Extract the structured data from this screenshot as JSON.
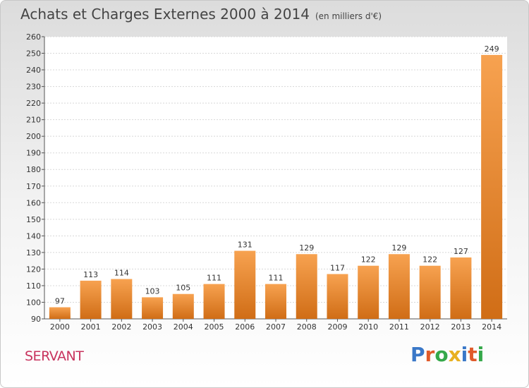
{
  "header": {
    "title": "Achats et Charges Externes 2000 à 2014",
    "subtitle": "(en milliers d'€)"
  },
  "footer": {
    "commune": "SERVANT",
    "logo_text": "Proxiti"
  },
  "colors": {
    "bar_light": "#f7a250",
    "bar_dark": "#d06d16",
    "commune": "#c8335e",
    "logo": [
      "#3a78c8",
      "#e05a2a",
      "#35a84a",
      "#e8b020",
      "#3a78c8",
      "#e05a2a",
      "#35a84a"
    ]
  },
  "chart_data": {
    "type": "bar",
    "title": "Achats et Charges Externes 2000 à 2014",
    "subtitle": "(en milliers d'€)",
    "categories": [
      "2000",
      "2001",
      "2002",
      "2003",
      "2004",
      "2005",
      "2006",
      "2007",
      "2008",
      "2009",
      "2010",
      "2011",
      "2012",
      "2013",
      "2014"
    ],
    "values": [
      97,
      113,
      114,
      103,
      105,
      111,
      131,
      111,
      129,
      117,
      122,
      129,
      122,
      127,
      249
    ],
    "ylim": [
      90,
      260
    ],
    "ytick_step": 10,
    "grid": true,
    "data_labels": true,
    "xlabel": "",
    "ylabel": ""
  }
}
